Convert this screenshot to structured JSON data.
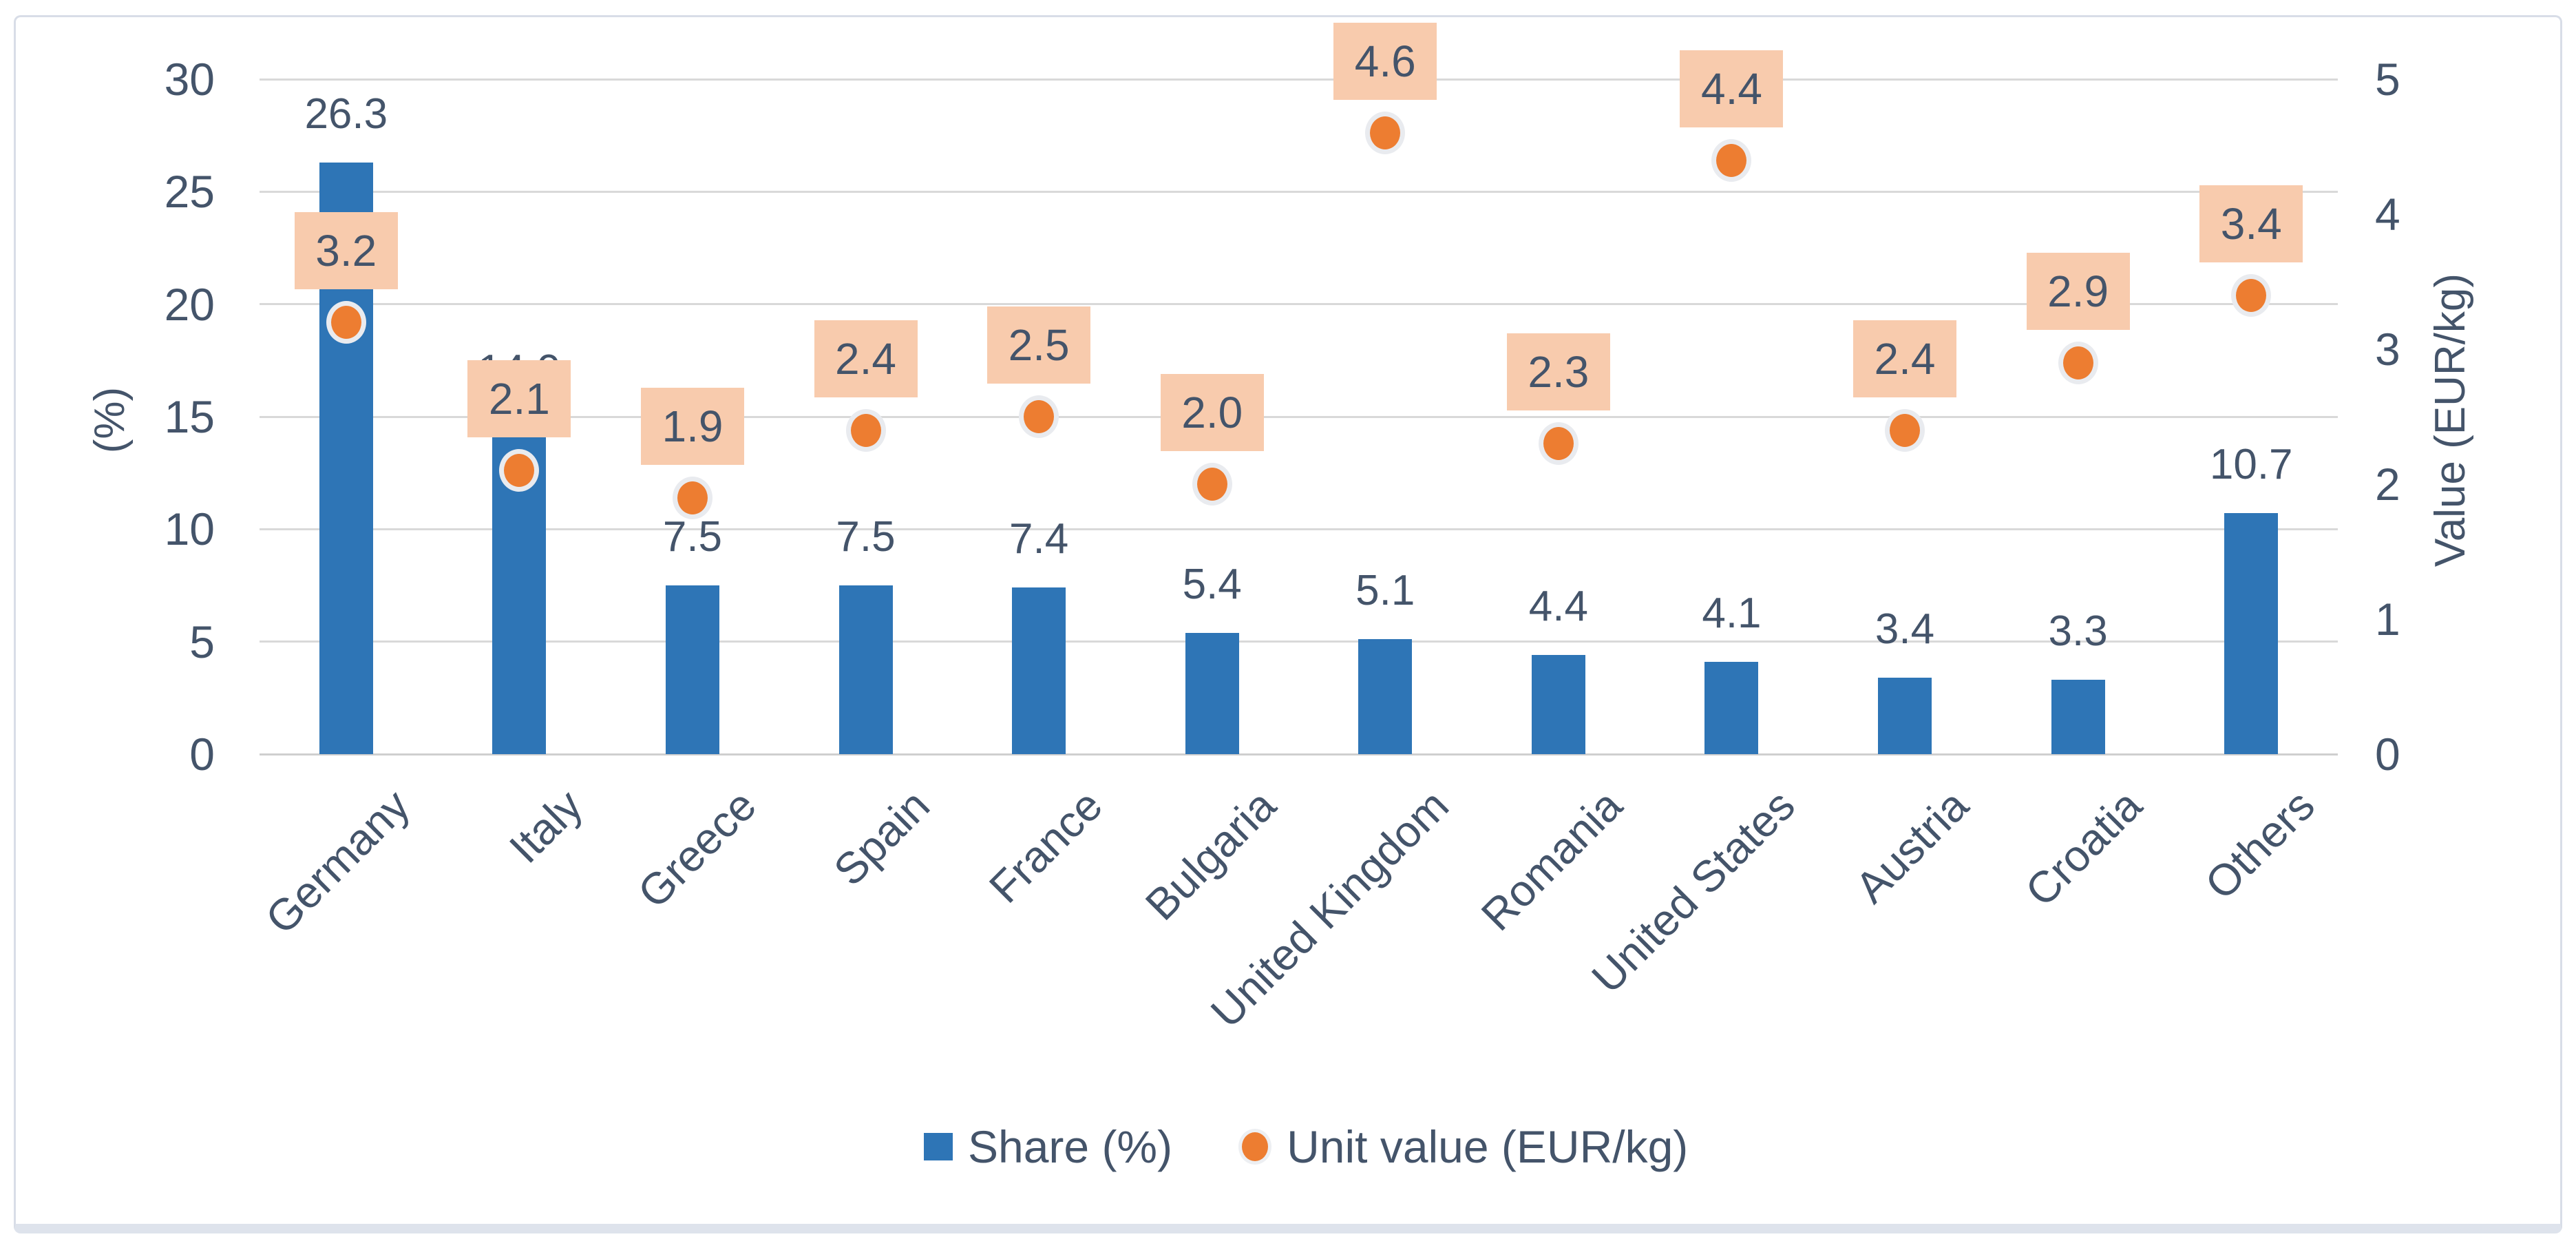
{
  "colors": {
    "bar": "#2E75B6",
    "marker": "#ED7D31",
    "marker_ring": "#E9EBEF",
    "value_chip_bg": "#F8CBAD",
    "text": "#44546A",
    "gridline": "#D9D9D9",
    "background": "#FFFFFF",
    "frame_border": "#D8DDE7",
    "frame_bottom": "#DEE3EC"
  },
  "chart_data": {
    "type": "bar",
    "subtype": "combo-bar-scatter-dual-axis",
    "categories": [
      "Germany",
      "Italy",
      "Greece",
      "Spain",
      "France",
      "Bulgaria",
      "United Kingdom",
      "Romania",
      "United States",
      "Austria",
      "Croatia",
      "Others"
    ],
    "series": [
      {
        "name": "Share (%)",
        "type": "bar",
        "axis": "left",
        "values": [
          26.3,
          14.9,
          7.5,
          7.5,
          7.4,
          5.4,
          5.1,
          4.4,
          4.1,
          3.4,
          3.3,
          10.7
        ]
      },
      {
        "name": "Unit value (EUR/kg)",
        "type": "scatter",
        "axis": "right",
        "values": [
          3.2,
          2.1,
          1.9,
          2.4,
          2.5,
          2.0,
          4.6,
          2.3,
          4.4,
          2.4,
          2.9,
          3.4
        ]
      }
    ],
    "title": "",
    "xlabel": "",
    "left_axis": {
      "title": "(%)",
      "min": 0,
      "max": 30,
      "step": 5,
      "ticks": [
        0,
        5,
        10,
        15,
        20,
        25,
        30
      ]
    },
    "right_axis": {
      "title": "Value (EUR/kg)",
      "min": 0,
      "max": 5,
      "step": 1,
      "ticks": [
        0,
        1,
        2,
        3,
        4,
        5
      ]
    },
    "grid": true,
    "legend_position": "bottom-center",
    "data_label_decimals": 1
  },
  "legend": {
    "share_label": "Share (%)",
    "unit_value_label": "Unit value (EUR/kg)"
  },
  "axis_titles": {
    "left": "(%)",
    "right": "Value (EUR/kg)"
  }
}
